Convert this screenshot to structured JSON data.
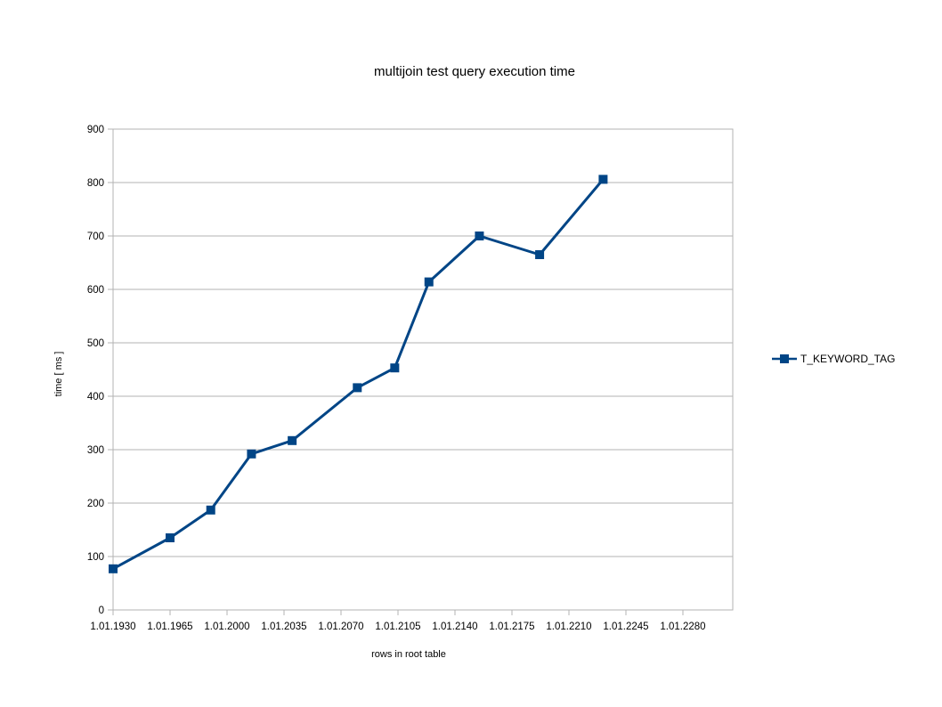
{
  "chart_data": {
    "type": "line",
    "title": "multijoin test query execution time",
    "xlabel": "rows in root table",
    "ylabel": "time [ ms ]",
    "x_tick_labels": [
      "1.01.1930",
      "1.01.1965",
      "1.01.2000",
      "1.01.2035",
      "1.01.2070",
      "1.01.2105",
      "1.01.2140",
      "1.01.2175",
      "1.01.2210",
      "1.01.2245",
      "1.01.2280"
    ],
    "y_ticks": [
      0,
      100,
      200,
      300,
      400,
      500,
      600,
      700,
      800,
      900
    ],
    "ylim": [
      0,
      900
    ],
    "grid": true,
    "legend_position": "right",
    "series": [
      {
        "name": "T_KEYWORD_TAG",
        "color": "#004586",
        "marker": "square",
        "x": [
          "1.01.1930",
          "1.01.1965",
          "1.01.1990",
          "1.01.2015",
          "1.01.2040",
          "1.01.2080",
          "1.01.2103",
          "1.01.2124",
          "1.01.2155",
          "1.01.2192",
          "1.01.2231"
        ],
        "values": [
          77,
          135,
          187,
          292,
          317,
          416,
          453,
          614,
          700,
          665,
          806
        ]
      }
    ]
  }
}
